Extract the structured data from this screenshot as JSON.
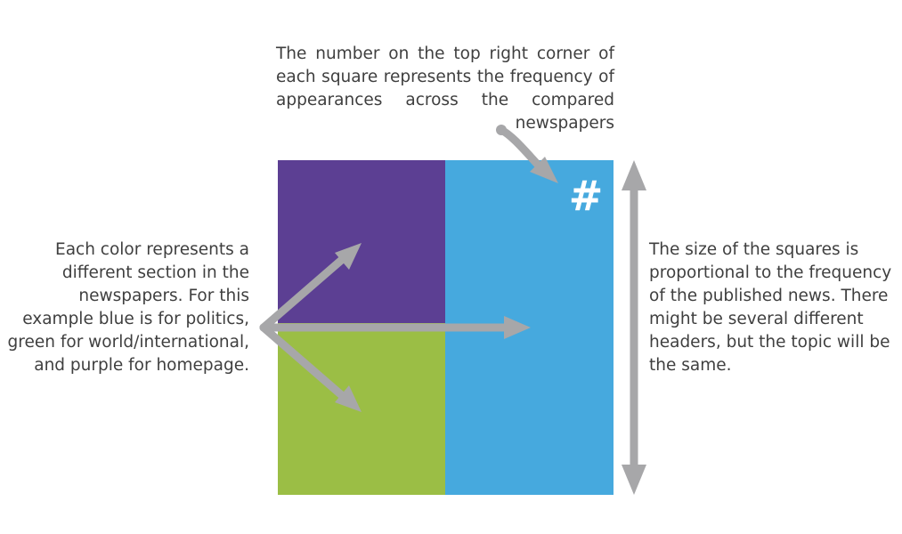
{
  "annotations": {
    "top": "The number on the top right corner of each square represents the frequency of appearances across the compared newspapers",
    "left": "Each color represents a different section in the newspapers. For this example blue is for politics, green for world/international, and purple for homepage.",
    "right": "The size of the squares is proportional to the frequency of the published news. There might be several different headers, but the topic will be the same."
  },
  "blocks": {
    "homepage": {
      "color": "#5c3f93"
    },
    "world": {
      "color": "#9bbe45"
    },
    "politics": {
      "color": "#46a9de"
    }
  },
  "frequency_symbol": "#",
  "arrow_color": "#a7a7a9"
}
